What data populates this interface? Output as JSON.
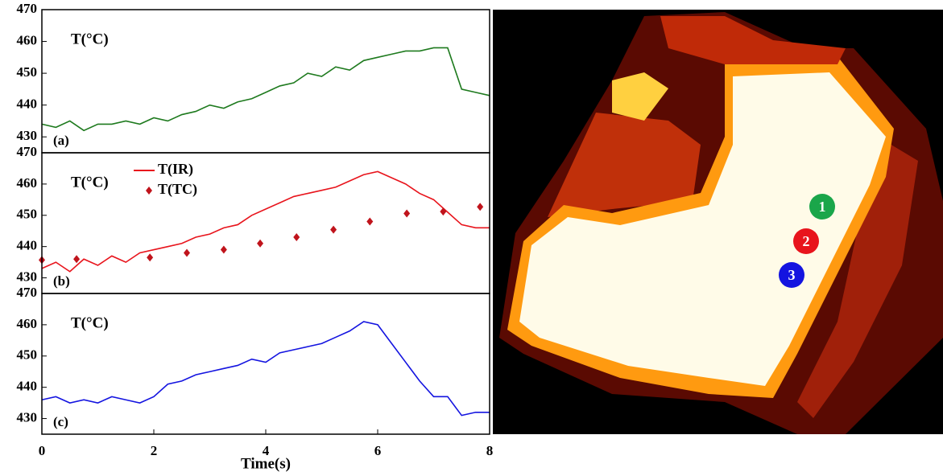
{
  "chart_data": [
    {
      "type": "line",
      "annotation": "T(°C)",
      "panel_label": "(a)",
      "x": [
        0,
        0.25,
        0.5,
        0.75,
        1,
        1.25,
        1.5,
        1.75,
        2,
        2.25,
        2.5,
        2.75,
        3,
        3.25,
        3.5,
        3.75,
        4,
        4.25,
        4.5,
        4.75,
        5,
        5.25,
        5.5,
        5.75,
        6,
        6.25,
        6.5,
        6.75,
        7,
        7.25,
        7.5,
        7.75,
        8
      ],
      "series": [
        {
          "name": null,
          "color": "#1e7a1e",
          "style": "line",
          "values": [
            434,
            433,
            435,
            432,
            434,
            434,
            435,
            434,
            436,
            435,
            437,
            438,
            440,
            439,
            441,
            442,
            444,
            446,
            447,
            450,
            449,
            452,
            451,
            454,
            455,
            456,
            457,
            457,
            458,
            458,
            445,
            444,
            443
          ]
        }
      ],
      "xlim": [
        0,
        8
      ],
      "ylim": [
        425,
        470
      ],
      "yticks": [
        430,
        440,
        450,
        460,
        470
      ]
    },
    {
      "type": "line",
      "annotation": "T(°C)",
      "panel_label": "(b)",
      "x": [
        0,
        0.25,
        0.5,
        0.75,
        1,
        1.25,
        1.5,
        1.75,
        2,
        2.25,
        2.5,
        2.75,
        3,
        3.25,
        3.5,
        3.75,
        4,
        4.25,
        4.5,
        4.75,
        5,
        5.25,
        5.5,
        5.75,
        6,
        6.25,
        6.5,
        6.75,
        7,
        7.25,
        7.5,
        7.75,
        8
      ],
      "series": [
        {
          "name": "T(IR)",
          "color": "#e8141c",
          "style": "line",
          "values": [
            433,
            435,
            432,
            436,
            434,
            437,
            435,
            438,
            439,
            440,
            441,
            443,
            444,
            446,
            447,
            450,
            452,
            454,
            456,
            457,
            458,
            459,
            461,
            463,
            464,
            462,
            460,
            457,
            455,
            451,
            447,
            446,
            446
          ]
        },
        {
          "name": "T(TC)",
          "color": "#c0141c",
          "style": "marker",
          "x": [
            0,
            0.62,
            1.93,
            2.59,
            3.25,
            3.9,
            4.55,
            5.21,
            5.86,
            6.52,
            7.17,
            7.83
          ],
          "values": [
            435.7,
            436,
            436.5,
            438,
            439,
            441,
            443,
            445.4,
            448,
            450.6,
            451.2,
            452.7
          ]
        }
      ],
      "xlim": [
        0,
        8
      ],
      "ylim": [
        425,
        470
      ],
      "yticks": [
        430,
        440,
        450,
        460,
        470
      ]
    },
    {
      "type": "line",
      "annotation": "T(°C)",
      "panel_label": "(c)",
      "xlabel": "Time(s)",
      "x": [
        0,
        0.25,
        0.5,
        0.75,
        1,
        1.25,
        1.5,
        1.75,
        2,
        2.25,
        2.5,
        2.75,
        3,
        3.25,
        3.5,
        3.75,
        4,
        4.25,
        4.5,
        4.75,
        5,
        5.25,
        5.5,
        5.75,
        6,
        6.25,
        6.5,
        6.75,
        7,
        7.25,
        7.5,
        7.75,
        8
      ],
      "series": [
        {
          "name": null,
          "color": "#1414e0",
          "style": "line",
          "values": [
            436,
            437,
            435,
            436,
            435,
            437,
            436,
            435,
            437,
            441,
            442,
            444,
            445,
            446,
            447,
            449,
            448,
            451,
            452,
            453,
            454,
            456,
            458,
            461,
            460,
            454,
            448,
            442,
            437,
            437,
            431,
            432,
            432
          ]
        }
      ],
      "xlim": [
        0,
        8
      ],
      "ylim": [
        425,
        470
      ],
      "yticks": [
        430,
        440,
        450,
        460,
        470
      ],
      "xticks": [
        0,
        2,
        4,
        6,
        8
      ]
    }
  ],
  "thermal_image": {
    "markers": [
      "1",
      "2",
      "3"
    ]
  }
}
